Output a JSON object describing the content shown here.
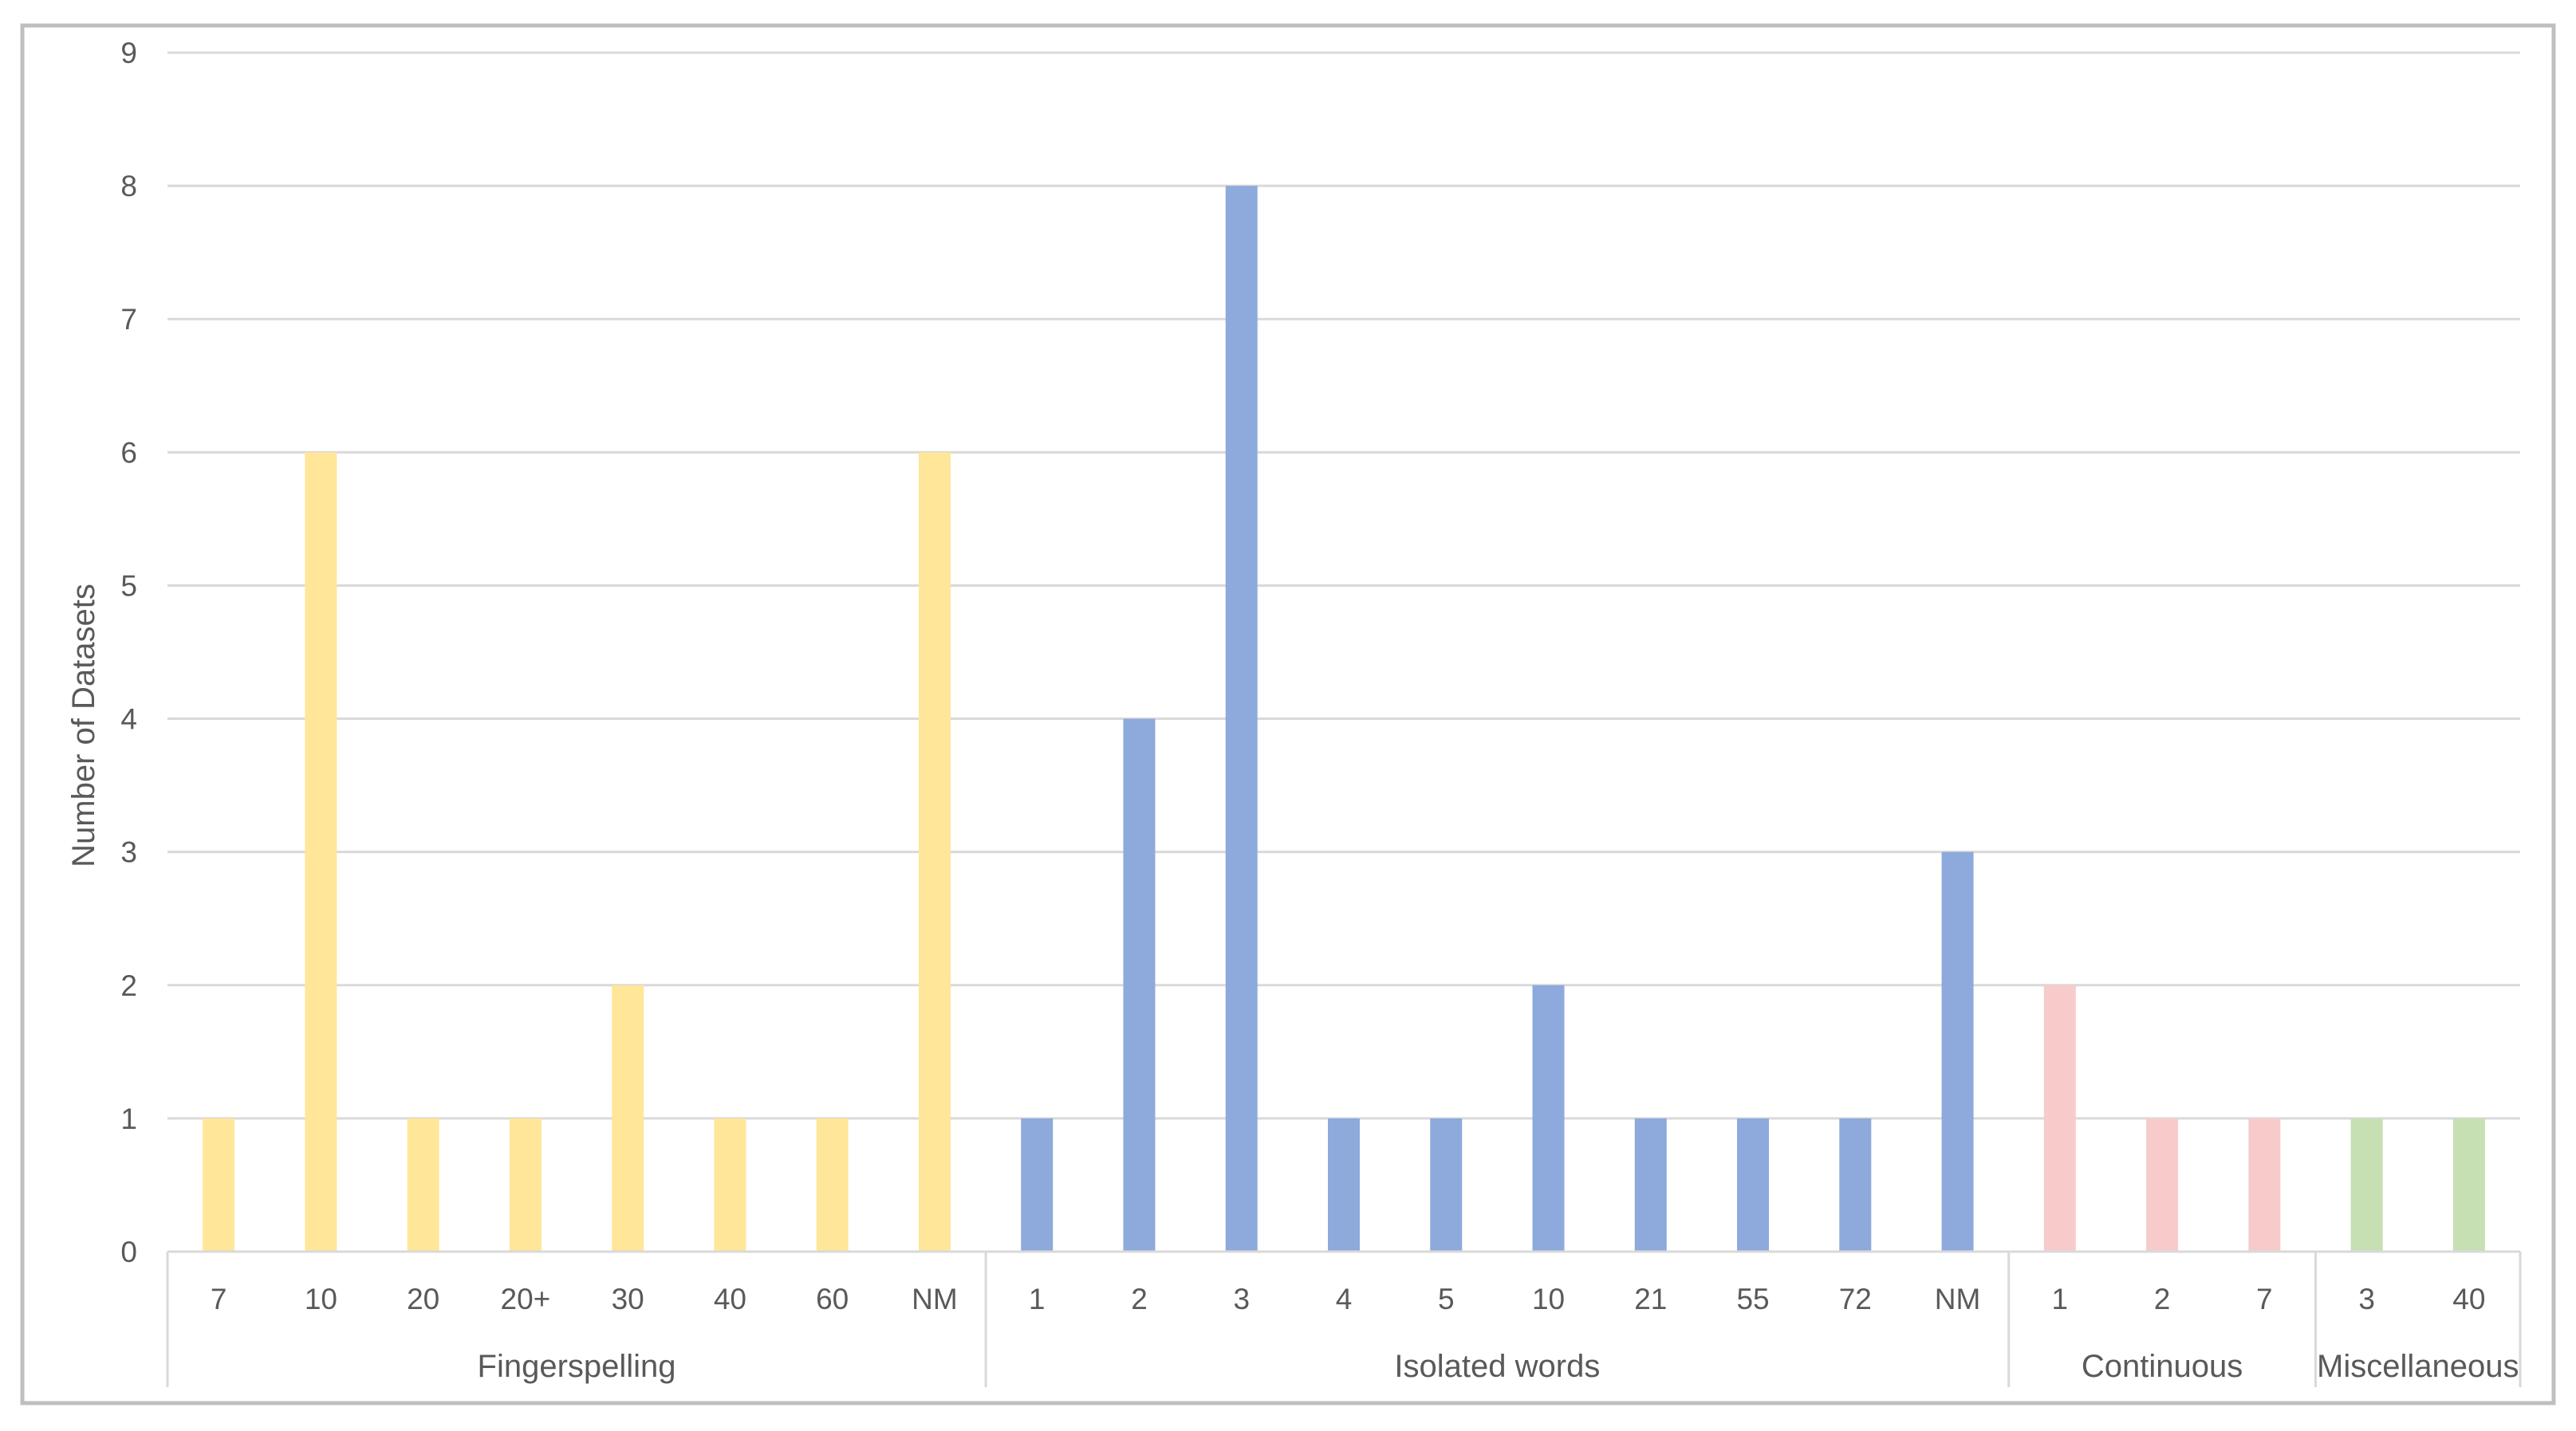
{
  "chart_data": {
    "type": "bar",
    "title": "",
    "xlabel": "",
    "ylabel": "Number of Datasets",
    "ylim": [
      0,
      9
    ],
    "yticks": [
      0,
      1,
      2,
      3,
      4,
      5,
      6,
      7,
      8,
      9
    ],
    "grid": true,
    "legend": "none",
    "groups": [
      {
        "name": "Fingerspelling",
        "color": "#FFE699",
        "categories": [
          "7",
          "10",
          "20",
          "20+",
          "30",
          "40",
          "60",
          "NM"
        ],
        "values": [
          1,
          6,
          1,
          1,
          2,
          1,
          1,
          6
        ]
      },
      {
        "name": "Isolated words",
        "color": "#8EA9DB",
        "categories": [
          "1",
          "2",
          "3",
          "4",
          "5",
          "10",
          "21",
          "55",
          "72",
          "NM"
        ],
        "values": [
          1,
          4,
          8,
          1,
          1,
          2,
          1,
          1,
          1,
          3
        ]
      },
      {
        "name": "Continuous",
        "color": "#F8CBCB",
        "categories": [
          "1",
          "2",
          "7"
        ],
        "values": [
          2,
          1,
          1
        ]
      },
      {
        "name": "Miscellaneous",
        "color": "#C6E0B4",
        "categories": [
          "3",
          "40"
        ],
        "values": [
          1,
          1
        ]
      }
    ]
  }
}
